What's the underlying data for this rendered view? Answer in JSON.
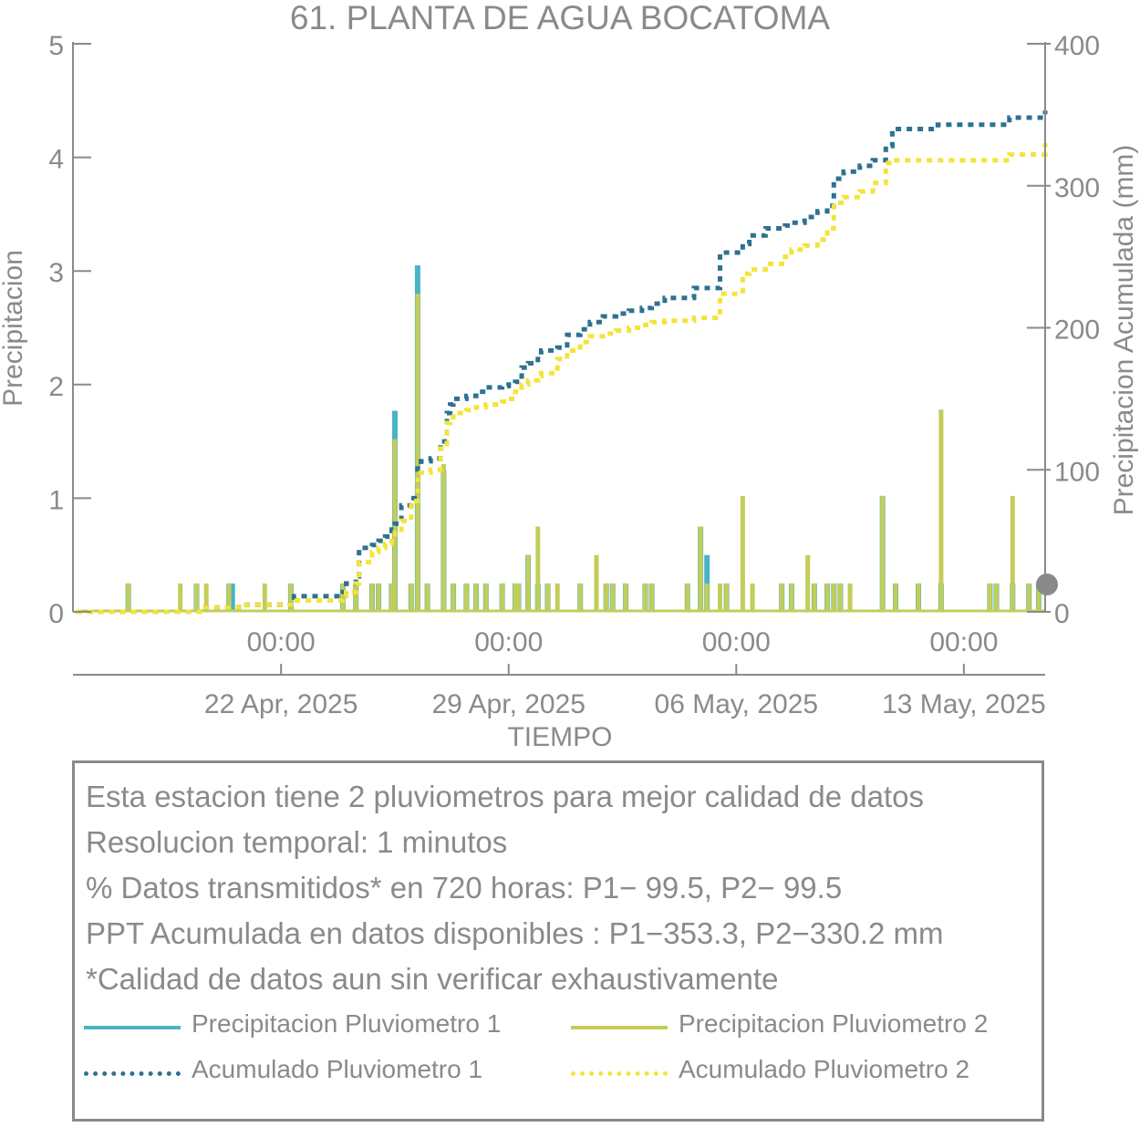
{
  "chart_data": {
    "type": "bar",
    "title": "61. PLANTA DE AGUA BOCATOMA",
    "xlabel": "TIEMPO",
    "ylabel_left": "Precipitacion",
    "ylabel_right": "Precipitacion Acumulada (mm)",
    "ylim_left": [
      0,
      5
    ],
    "ylim_right": [
      0,
      400
    ],
    "yticks_left": [
      "0",
      "1",
      "2",
      "3",
      "4",
      "5"
    ],
    "yticks_right": [
      "0",
      "100",
      "200",
      "300",
      "400"
    ],
    "xlim_days": [
      -6.4,
      23.5
    ],
    "xticks": [
      {
        "day": 0,
        "time": "00:00",
        "date": "22 Apr, 2025"
      },
      {
        "day": 7,
        "time": "00:00",
        "date": "29 Apr, 2025"
      },
      {
        "day": 14,
        "time": "00:00",
        "date": "06 May, 2025"
      },
      {
        "day": 21,
        "time": "00:00",
        "date": "13 May, 2025"
      }
    ],
    "colors": {
      "p1": "#4ab3c6",
      "p2": "#c3cd5a",
      "acc1": "#2e7190",
      "acc2": "#f3e43a",
      "axis": "#8a8a8a",
      "marker": "#8a8a8a"
    },
    "series": [
      {
        "name": "Precipitacion Pluviometro 1",
        "kind": "bar",
        "axis": "left",
        "x": [
          -4.7,
          -2.6,
          -1.6,
          -1.5,
          0.3,
          1.9,
          2.3,
          2.8,
          3.0,
          3.4,
          3.5,
          4.0,
          4.2,
          4.5,
          5.0,
          5.3,
          5.7,
          6.0,
          6.3,
          6.8,
          7.2,
          7.3,
          7.6,
          7.9,
          8.2,
          9.2,
          10.0,
          10.2,
          10.6,
          11.2,
          11.4,
          12.5,
          12.9,
          13.1,
          13.7,
          15.4,
          15.7,
          16.4,
          16.8,
          17.0,
          17.2,
          18.5,
          18.9,
          19.6,
          20.3,
          21.8,
          22.0,
          22.5,
          23.0,
          23.3
        ],
        "values": [
          0.25,
          0.25,
          0.25,
          0.25,
          0.25,
          0.25,
          0.25,
          0.25,
          0.25,
          0.25,
          1.77,
          0.25,
          3.05,
          0.25,
          1.25,
          0.25,
          0.25,
          0.25,
          0.25,
          0.25,
          0.25,
          0.25,
          0.5,
          0.25,
          0.25,
          0.25,
          0.25,
          0.25,
          0.25,
          0.25,
          0.25,
          0.25,
          0.75,
          0.5,
          0.25,
          0.25,
          0.25,
          0.25,
          0.25,
          0.25,
          0.25,
          1.02,
          0.25,
          0.25,
          0.25,
          0.25,
          0.25,
          0.25,
          0.25,
          0.25
        ]
      },
      {
        "name": "Precipitacion Pluviometro 2",
        "kind": "bar",
        "axis": "left",
        "x": [
          -4.7,
          -3.1,
          -2.6,
          -2.3,
          -1.6,
          -0.5,
          0.3,
          1.9,
          2.3,
          2.8,
          3.0,
          3.4,
          3.5,
          4.0,
          4.2,
          4.5,
          5.0,
          5.3,
          5.7,
          6.0,
          6.3,
          6.8,
          7.2,
          7.3,
          7.6,
          7.9,
          8.2,
          8.5,
          9.2,
          9.7,
          10.0,
          10.2,
          10.6,
          11.2,
          11.4,
          12.5,
          12.9,
          13.1,
          13.5,
          13.7,
          14.2,
          14.5,
          15.4,
          15.7,
          16.2,
          16.4,
          16.8,
          17.0,
          17.2,
          17.5,
          18.5,
          18.9,
          19.6,
          20.3,
          21.8,
          22.0,
          22.5,
          23.0,
          23.3
        ],
        "values": [
          0.25,
          0.25,
          0.25,
          0.25,
          0.25,
          0.25,
          0.25,
          0.25,
          0.25,
          0.25,
          0.25,
          0.25,
          1.52,
          0.25,
          2.8,
          0.25,
          1.3,
          0.25,
          0.25,
          0.25,
          0.25,
          0.25,
          0.25,
          0.25,
          0.5,
          0.75,
          0.25,
          0.25,
          0.25,
          0.5,
          0.25,
          0.25,
          0.25,
          0.25,
          0.25,
          0.25,
          0.75,
          0.25,
          0.25,
          0.25,
          1.02,
          0.25,
          0.25,
          0.25,
          0.5,
          0.25,
          0.25,
          0.25,
          0.25,
          0.25,
          1.02,
          0.25,
          0.25,
          1.78,
          0.25,
          0.25,
          1.02,
          0.25,
          0.25
        ]
      },
      {
        "name": "Acumulado Pluviometro 1",
        "kind": "step",
        "axis": "right",
        "x": [
          -6.3,
          -3.4,
          -2.5,
          -1.3,
          0.4,
          1.9,
          2.0,
          2.3,
          2.4,
          2.8,
          3.0,
          3.2,
          3.4,
          3.5,
          3.7,
          4.0,
          4.2,
          4.3,
          4.6,
          4.9,
          5.1,
          5.2,
          5.3,
          5.7,
          6.0,
          6.3,
          6.8,
          7.0,
          7.2,
          7.4,
          7.6,
          7.9,
          8.0,
          8.5,
          8.8,
          9.2,
          9.5,
          9.9,
          10.3,
          10.7,
          11.1,
          11.4,
          11.8,
          12.5,
          12.7,
          13.5,
          14.2,
          14.4,
          14.9,
          15.5,
          15.7,
          16.1,
          16.5,
          16.8,
          17.0,
          17.3,
          17.8,
          18.2,
          18.6,
          18.8,
          20.2,
          21.4,
          21.9,
          22.4,
          23.5
        ],
        "values": [
          0,
          0,
          3,
          5,
          11,
          14,
          20,
          25,
          45,
          47,
          50,
          53,
          58,
          62,
          75,
          80,
          103,
          106,
          108,
          120,
          140,
          146,
          150,
          152,
          155,
          158,
          159,
          160,
          162,
          172,
          175,
          180,
          184,
          186,
          195,
          199,
          204,
          208,
          210,
          212,
          214,
          217,
          221,
          221,
          228,
          253,
          259,
          265,
          270,
          272,
          274,
          278,
          282,
          286,
          305,
          310,
          314,
          318,
          328,
          340,
          343,
          343,
          343,
          348,
          353
        ]
      },
      {
        "name": "Acumulado Pluviometro 2",
        "kind": "step",
        "axis": "right",
        "x": [
          -6.3,
          -3.4,
          -2.5,
          -1.3,
          0.4,
          1.9,
          2.0,
          2.3,
          2.4,
          2.8,
          3.0,
          3.2,
          3.4,
          3.5,
          3.7,
          4.0,
          4.2,
          4.3,
          4.6,
          4.9,
          5.1,
          5.2,
          5.3,
          5.7,
          6.0,
          6.3,
          6.8,
          7.0,
          7.2,
          7.4,
          7.6,
          7.9,
          8.0,
          8.5,
          8.8,
          9.2,
          9.5,
          9.9,
          10.3,
          10.7,
          11.1,
          11.4,
          11.8,
          12.5,
          12.7,
          13.5,
          14.2,
          14.4,
          14.9,
          15.5,
          15.7,
          16.1,
          16.5,
          16.8,
          17.0,
          17.3,
          17.8,
          18.2,
          18.6,
          18.8,
          20.2,
          21.4,
          21.9,
          22.4,
          23.5
        ],
        "values": [
          0,
          0,
          3,
          5,
          8,
          11,
          14,
          20,
          35,
          42,
          45,
          48,
          52,
          56,
          64,
          78,
          95,
          98,
          100,
          115,
          133,
          137,
          140,
          142,
          144,
          146,
          148,
          150,
          155,
          160,
          163,
          166,
          168,
          178,
          184,
          190,
          194,
          196,
          198,
          200,
          202,
          204,
          205,
          205,
          207,
          224,
          238,
          241,
          245,
          250,
          255,
          258,
          262,
          270,
          288,
          292,
          296,
          302,
          316,
          318,
          318,
          318,
          318,
          322,
          330
        ]
      }
    ]
  },
  "info": {
    "lines": [
      "Esta estacion tiene 2 pluviometros para mejor calidad de datos",
      "Resolucion temporal: 1 minutos",
      "% Datos transmitidos* en 720 horas: P1− 99.5, P2− 99.5",
      "PPT Acumulada en datos disponibles : P1−353.3, P2−330.2 mm",
      "*Calidad de datos aun sin verificar exhaustivamente"
    ]
  },
  "legend": {
    "p1": "Precipitacion Pluviometro 1",
    "p2": "Precipitacion Pluviometro 2",
    "acc1": "Acumulado Pluviometro 1",
    "acc2": "Acumulado Pluviometro 2"
  }
}
